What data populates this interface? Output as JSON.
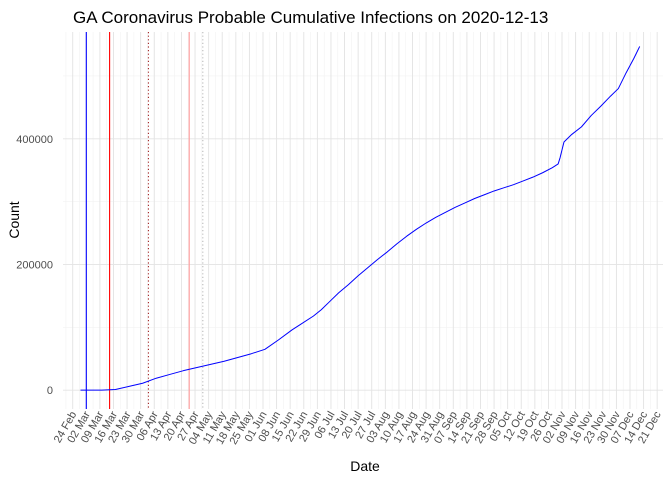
{
  "chart_data": {
    "type": "line",
    "title": "GA Coronavirus Probable Cumulative Infections on 2020-12-13",
    "xlabel": "Date",
    "ylabel": "Count",
    "x_range": [
      "2020-02-19",
      "2020-12-24"
    ],
    "ylim": [
      -30000,
      570000
    ],
    "y_ticks": [
      0,
      200000,
      400000
    ],
    "y_tick_labels": [
      "0",
      "200000",
      "400000"
    ],
    "x_ticks": [
      "2020-02-24",
      "2020-03-02",
      "2020-03-09",
      "2020-03-16",
      "2020-03-23",
      "2020-03-30",
      "2020-04-06",
      "2020-04-13",
      "2020-04-20",
      "2020-04-27",
      "2020-05-04",
      "2020-05-11",
      "2020-05-18",
      "2020-05-25",
      "2020-06-01",
      "2020-06-08",
      "2020-06-15",
      "2020-06-22",
      "2020-06-29",
      "2020-07-06",
      "2020-07-13",
      "2020-07-20",
      "2020-07-27",
      "2020-08-03",
      "2020-08-10",
      "2020-08-17",
      "2020-08-24",
      "2020-08-31",
      "2020-09-07",
      "2020-09-14",
      "2020-09-21",
      "2020-09-28",
      "2020-10-05",
      "2020-10-12",
      "2020-10-19",
      "2020-10-26",
      "2020-11-02",
      "2020-11-09",
      "2020-11-16",
      "2020-11-23",
      "2020-11-30",
      "2020-12-07",
      "2020-12-14",
      "2020-12-21"
    ],
    "x_tick_labels": [
      "24 Feb",
      "02 Mar",
      "09 Mar",
      "16 Mar",
      "23 Mar",
      "30 Mar",
      "06 Apr",
      "13 Apr",
      "20 Apr",
      "27 Apr",
      "04 May",
      "11 May",
      "18 May",
      "25 May",
      "01 Jun",
      "08 Jun",
      "15 Jun",
      "22 Jun",
      "29 Jun",
      "06 Jul",
      "13 Jul",
      "20 Jul",
      "27 Jul",
      "03 Aug",
      "10 Aug",
      "17 Aug",
      "24 Aug",
      "31 Aug",
      "07 Sep",
      "14 Sep",
      "21 Sep",
      "28 Sep",
      "05 Oct",
      "12 Oct",
      "19 Oct",
      "26 Oct",
      "02 Nov",
      "09 Nov",
      "16 Nov",
      "23 Nov",
      "30 Nov",
      "07 Dec",
      "14 Dec",
      "21 Dec"
    ],
    "grid": true,
    "vlines": [
      {
        "x": "2020-03-02",
        "color": "#0000ff",
        "style": "solid"
      },
      {
        "x": "2020-03-14",
        "color": "#ff0000",
        "style": "solid"
      },
      {
        "x": "2020-04-03",
        "color": "#a52a2a",
        "style": "dotted"
      },
      {
        "x": "2020-04-24",
        "color": "#ff9999",
        "style": "solid"
      },
      {
        "x": "2020-05-01",
        "color": "#bbbbbb",
        "style": "dotted"
      }
    ],
    "series": [
      {
        "color": "#0000ff",
        "x": [
          "2020-02-28",
          "2020-03-10",
          "2020-03-17",
          "2020-03-24",
          "2020-03-31",
          "2020-04-07",
          "2020-04-14",
          "2020-04-21",
          "2020-04-28",
          "2020-05-05",
          "2020-05-12",
          "2020-05-19",
          "2020-05-26",
          "2020-06-02",
          "2020-06-09",
          "2020-06-16",
          "2020-06-20",
          "2020-06-27",
          "2020-07-01",
          "2020-07-05",
          "2020-07-10",
          "2020-07-15",
          "2020-07-20",
          "2020-07-25",
          "2020-07-30",
          "2020-08-04",
          "2020-08-09",
          "2020-08-14",
          "2020-08-19",
          "2020-08-24",
          "2020-08-29",
          "2020-09-03",
          "2020-09-08",
          "2020-09-13",
          "2020-09-18",
          "2020-09-23",
          "2020-09-28",
          "2020-10-03",
          "2020-10-08",
          "2020-10-13",
          "2020-10-18",
          "2020-10-23",
          "2020-10-28",
          "2020-10-31",
          "2020-11-01",
          "2020-11-03",
          "2020-11-07",
          "2020-11-12",
          "2020-11-17",
          "2020-11-22",
          "2020-11-27",
          "2020-12-01",
          "2020-12-05",
          "2020-12-09",
          "2020-12-12"
        ],
        "y": [
          0,
          0,
          1000,
          6000,
          11000,
          19000,
          25000,
          31000,
          36000,
          41000,
          46000,
          52000,
          58000,
          65000,
          80000,
          96000,
          104000,
          118000,
          128000,
          140000,
          155000,
          168000,
          182000,
          195000,
          208000,
          220000,
          233000,
          245000,
          256000,
          266000,
          275000,
          283000,
          291000,
          298000,
          305000,
          311000,
          317000,
          322000,
          327000,
          333000,
          339000,
          346000,
          354000,
          360000,
          370000,
          395000,
          407000,
          419000,
          437000,
          452000,
          468000,
          480000,
          505000,
          528000,
          547000
        ]
      }
    ]
  }
}
